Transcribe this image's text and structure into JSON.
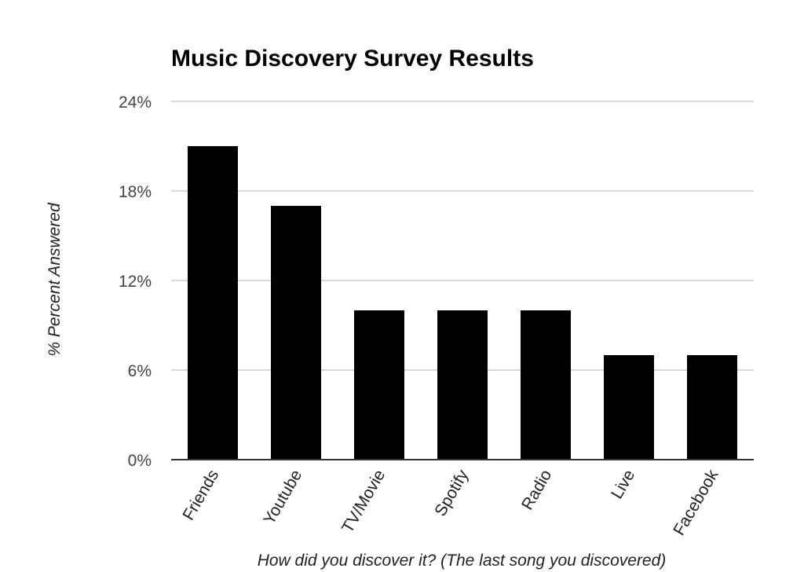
{
  "chart_data": {
    "type": "bar",
    "title": "Music Discovery Survey Results",
    "xlabel": "How did you discover it? (The last song you discovered)",
    "ylabel": "% Percent Answered",
    "categories": [
      "Friends",
      "Youtube",
      "TV/Movie",
      "Spotify",
      "Radio",
      "Live",
      "Facebook"
    ],
    "values": [
      21,
      17,
      10,
      10,
      10,
      7,
      7
    ],
    "ylim": [
      0,
      24
    ],
    "yticks": [
      0,
      6,
      12,
      18,
      24
    ],
    "ytick_labels": [
      "0%",
      "6%",
      "12%",
      "18%",
      "24%"
    ],
    "grid": true,
    "legend": "none",
    "colors": {
      "bar": "#000000",
      "grid": "#cccccc",
      "axis": "#333333"
    }
  }
}
